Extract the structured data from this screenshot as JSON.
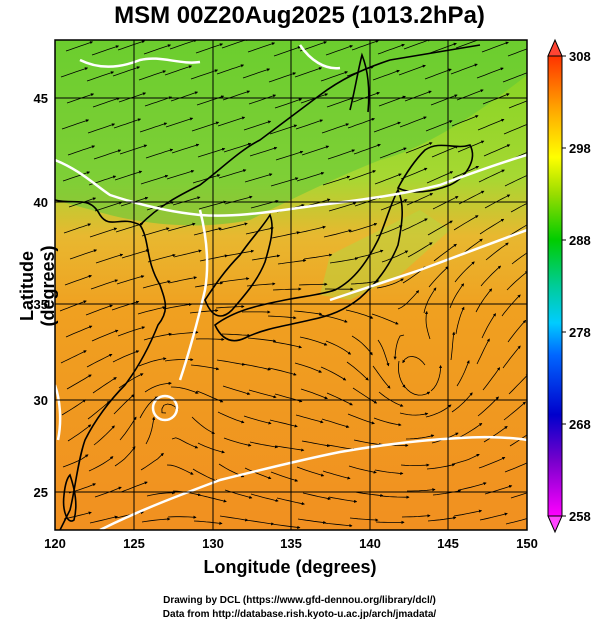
{
  "title": "MSM 00Z20Aug2025 (1013.2hPa)",
  "map": {
    "xlabel": "Longitude (degrees)",
    "ylabel": "Latitude  (degrees)",
    "lon_range": [
      120,
      150
    ],
    "lat_range": [
      22.5,
      47.5
    ],
    "lon_ticks": [
      "120",
      "125",
      "130",
      "135",
      "140",
      "145",
      "150"
    ],
    "lat_ticks": [
      "25",
      "30",
      "35",
      "40",
      "45"
    ],
    "grid": true
  },
  "colorbar": {
    "min": 258,
    "max": 308,
    "ticks": [
      "258",
      "268",
      "278",
      "288",
      "298",
      "308"
    ],
    "colors": {
      "low": "#ff00ff",
      "blue": "#0000cc",
      "cyan": "#00ccff",
      "green": "#00cc00",
      "yellow": "#ffff00",
      "orange": "#ff9900",
      "high": "#ff3300"
    }
  },
  "credits": {
    "line1": "Drawing by DCL (https://www.gfd-dennou.org/library/dcl/)",
    "line2": "Data from http://database.rish.kyoto-u.ac.jp/arch/jmadata/"
  }
}
